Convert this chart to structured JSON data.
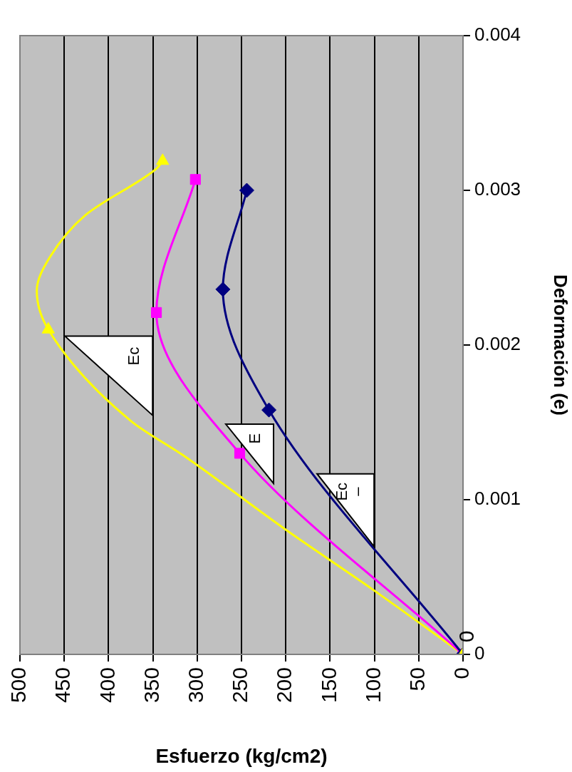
{
  "chart_data": {
    "type": "line",
    "xlabel": "Esfuerzo (kg/cm2)",
    "ylabel": "Deformación (e)",
    "xlim": [
      500,
      0
    ],
    "xticks": [
      500,
      450,
      400,
      350,
      300,
      250,
      200,
      150,
      100,
      50,
      0
    ],
    "ylim": [
      0,
      0.004
    ],
    "yticks": [
      0,
      0.001,
      0.002,
      0.003,
      0.004
    ],
    "grid": "x",
    "legend": false,
    "line_style": "solid",
    "series": [
      {
        "type": "line",
        "color": "#000080",
        "marker": "diamond",
        "x": [
          0,
          219,
          271,
          244
        ],
        "values": [
          0,
          0.00158,
          0.00236,
          0.003
        ]
      },
      {
        "type": "line",
        "color": "#ff00ff",
        "marker": "square",
        "x": [
          0,
          252,
          346,
          302
        ],
        "values": [
          0,
          0.0013,
          0.00221,
          0.00307
        ]
      },
      {
        "type": "line",
        "color": "#ffff00",
        "marker": "none",
        "x": [
          0,
          102,
          201,
          314,
          375,
          468,
          481,
          466,
          426,
          346,
          339
        ],
        "values": [
          0,
          0.00042,
          0.00081,
          0.00128,
          0.00151,
          0.0021,
          0.00235,
          0.00257,
          0.00284,
          0.00314,
          0.00319
        ]
      },
      {
        "type": "scatter",
        "color": "#ffff00",
        "marker": "triangle",
        "x": [
          0,
          468,
          339
        ],
        "values": [
          0,
          0.0021,
          0.00319
        ]
      }
    ],
    "annotations": [
      "0",
      "Ec",
      "E",
      "Ec\n–"
    ]
  }
}
